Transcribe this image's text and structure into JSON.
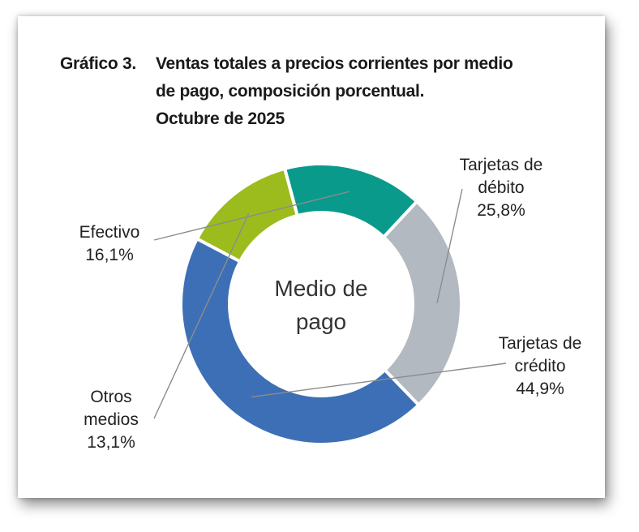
{
  "figure": {
    "number": "Gráfico 3.",
    "title_lines": [
      "Ventas totales a precios corrientes por medio",
      "de pago, composición porcentual.",
      "Octubre de 2025"
    ]
  },
  "chart_data": {
    "type": "pie",
    "variant": "donut",
    "center_label": [
      "Medio de",
      "pago"
    ],
    "slices": [
      {
        "label_lines": [
          "Tarjetas de",
          "débito"
        ],
        "value": 25.8,
        "value_label": "25,8%",
        "color": "#b3b9c1"
      },
      {
        "label_lines": [
          "Tarjetas de",
          "crédito"
        ],
        "value": 44.9,
        "value_label": "44,9%",
        "color": "#3d6fb6"
      },
      {
        "label_lines": [
          "Otros",
          "medios"
        ],
        "value": 13.1,
        "value_label": "13,1%",
        "color": "#9cbc1d"
      },
      {
        "label_lines": [
          "Efectivo"
        ],
        "value": 16.1,
        "value_label": "16,1%",
        "color": "#0a9a8c"
      }
    ]
  }
}
